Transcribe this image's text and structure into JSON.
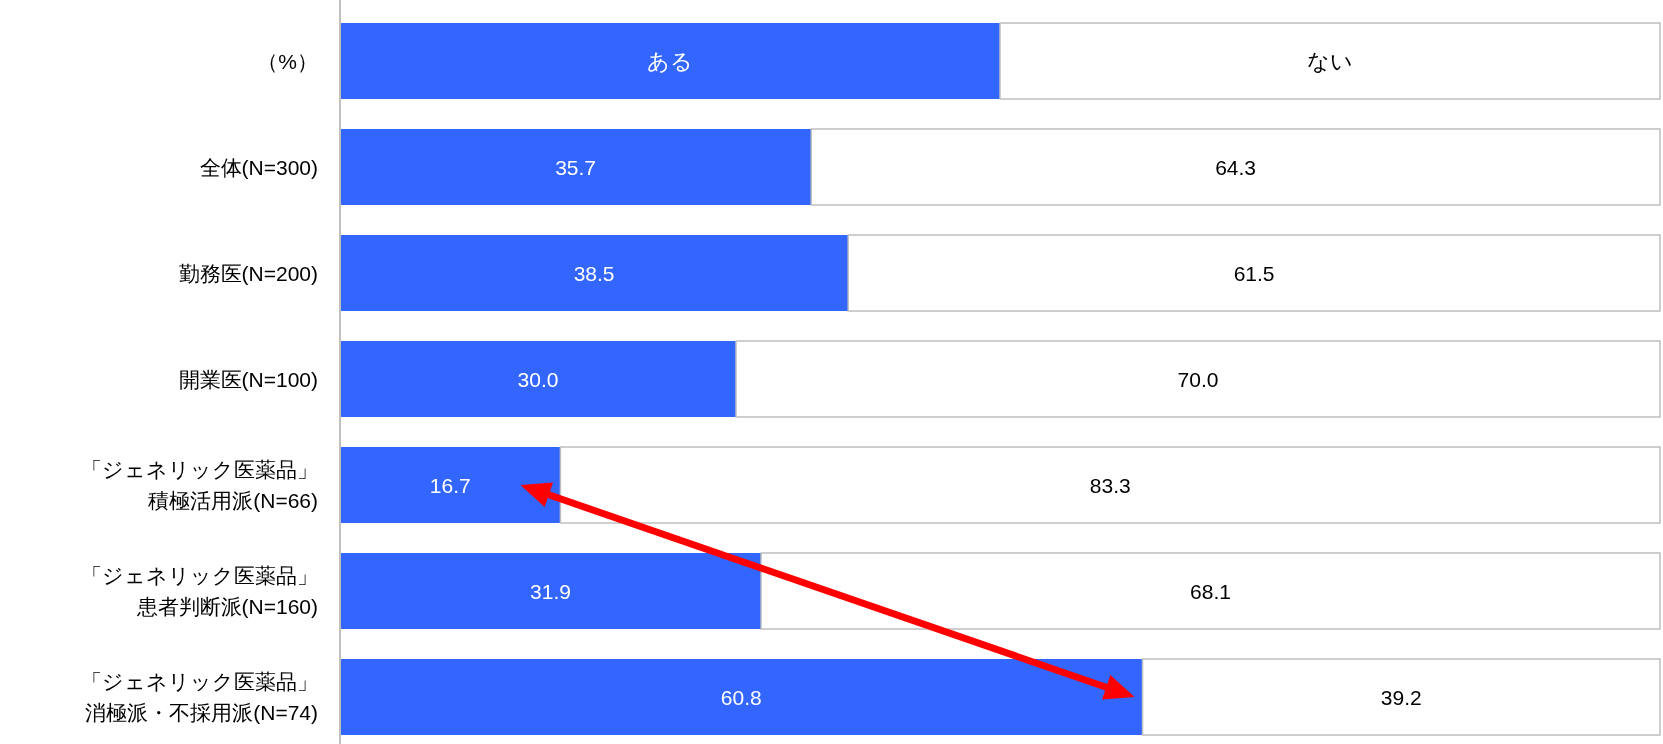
{
  "chart_data": {
    "type": "bar",
    "orientation": "horizontal",
    "stacked": true,
    "categories": [
      "全体(N=300)",
      "勤務医(N=200)",
      "開業医(N=100)",
      "「ジェネリック医薬品」積極活用派(N=66)",
      "「ジェネリック医薬品」患者判断派(N=160)",
      "「ジェネリック医薬品」消極派・不採用派(N=74)"
    ],
    "series": [
      {
        "name": "ある",
        "color": "#3366ff",
        "values": [
          35.7,
          38.5,
          30.0,
          16.7,
          31.9,
          60.8
        ],
        "value_labels": [
          "35.7",
          "38.5",
          "30.0",
          "16.7",
          "31.9",
          "60.8"
        ]
      },
      {
        "name": "ない",
        "color": "#ffffff",
        "values": [
          64.3,
          61.5,
          70.0,
          83.3,
          68.1,
          39.2
        ],
        "value_labels": [
          "64.3",
          "61.5",
          "70.0",
          "83.3",
          "68.1",
          "39.2"
        ]
      }
    ],
    "legend": "top",
    "annotations": [
      "（%）"
    ]
  }
}
